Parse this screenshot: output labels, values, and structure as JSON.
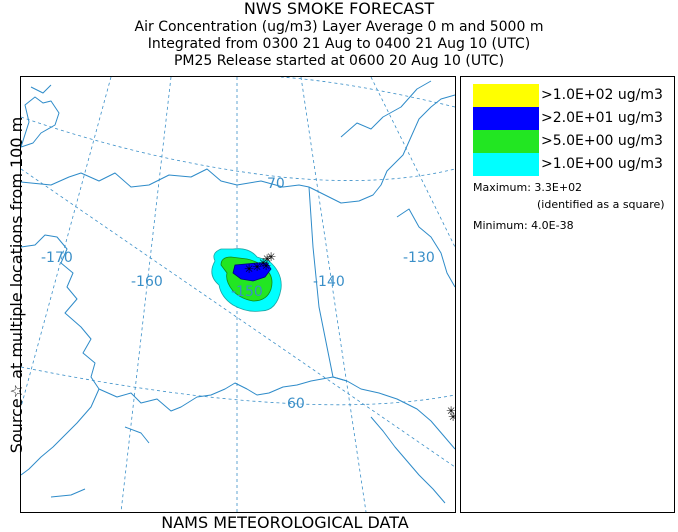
{
  "header": {
    "title": "NWS SMOKE FORECAST",
    "line2": "Air Concentration (ug/m3) Layer Average    0 m and  5000 m",
    "line3": "Integrated from 0300 21 Aug to 0400 21 Aug 10 (UTC)",
    "line4": "PM25 Release started at 0600 20 Aug 10 (UTC)"
  },
  "side_label": "Source☆  at multiple locations   from   100 m",
  "footer": "NAMS METEOROLOGICAL DATA",
  "map": {
    "graticule_labels": {
      "lat_70": "70",
      "lat_60": "60",
      "lon_m170": "-170",
      "lon_m160": "-160",
      "lon_m150": "-150",
      "lon_m140": "-140",
      "lon_m130": "-130"
    },
    "colors": {
      "coast": "#2e8bc9",
      "graticule": "#3a8fc8"
    },
    "source_marker": "star-icon"
  },
  "legend": {
    "levels": [
      {
        "label": ">1.0E+02 ug/m3",
        "color": "#ffff00"
      },
      {
        "label": ">2.0E+01 ug/m3",
        "color": "#0000ff"
      },
      {
        "label": ">5.0E+00 ug/m3",
        "color": "#22e622"
      },
      {
        "label": ">1.0E+00 ug/m3",
        "color": "#00ffff"
      }
    ],
    "maximum": "Maximum: 3.3E+02",
    "maximum_note": "(identified as a square)",
    "minimum": "Minimum: 4.0E-38"
  }
}
